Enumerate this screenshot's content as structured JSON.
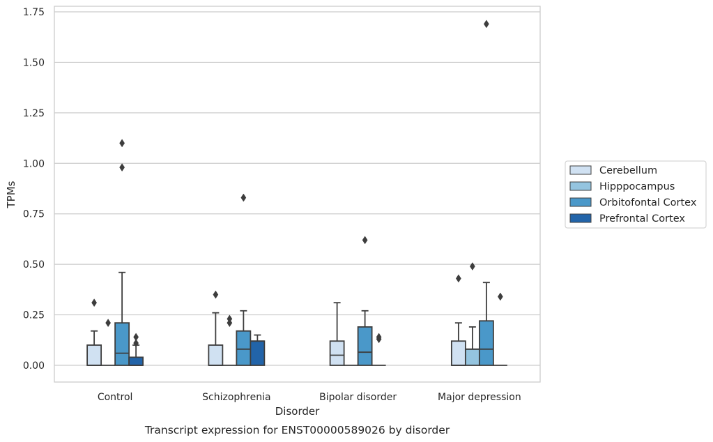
{
  "caption": "Transcript expression for ENST00000589026 by disorder",
  "chart_data": {
    "type": "box",
    "xlabel": "Disorder",
    "ylabel": "TPMs",
    "categories": [
      "Control",
      "Schizophrenia",
      "Bipolar disorder",
      "Major depression"
    ],
    "ylim": [
      -0.08,
      1.77
    ],
    "yticks": [
      "0.00",
      "0.25",
      "0.50",
      "0.75",
      "1.00",
      "1.25",
      "1.50",
      "1.75"
    ],
    "grid": "horizontal",
    "legend": {
      "placement": "right",
      "entries": [
        "Cerebellum",
        "Hipppocampus",
        "Orbitofontal Cortex",
        "Prefrontal Cortex"
      ]
    },
    "colors": [
      "#d0e1f2",
      "#94c4df",
      "#4a98c9",
      "#2264a9"
    ],
    "edge_color": "#3d3d3d",
    "series": [
      {
        "name": "Cerebellum",
        "boxes": [
          {
            "q1": 0,
            "median": 0,
            "q3": 0.1,
            "whislo": 0,
            "whishi": 0.17,
            "fliers": [
              0.31
            ]
          },
          {
            "q1": 0,
            "median": 0,
            "q3": 0.1,
            "whislo": 0,
            "whishi": 0.26,
            "fliers": [
              0.35
            ]
          },
          {
            "q1": 0,
            "median": 0.05,
            "q3": 0.12,
            "whislo": 0,
            "whishi": 0.31,
            "fliers": []
          },
          {
            "q1": 0,
            "median": 0,
            "q3": 0.12,
            "whislo": 0,
            "whishi": 0.21,
            "fliers": [
              0.43
            ]
          }
        ]
      },
      {
        "name": "Hipppocampus",
        "boxes": [
          {
            "q1": 0,
            "median": 0,
            "q3": 0,
            "whislo": 0,
            "whishi": 0,
            "fliers": [
              0.21
            ]
          },
          {
            "q1": 0,
            "median": 0,
            "q3": 0,
            "whislo": 0,
            "whishi": 0,
            "fliers": [
              0.21,
              0.23
            ]
          },
          {
            "q1": 0,
            "median": 0,
            "q3": 0,
            "whislo": 0,
            "whishi": 0,
            "fliers": []
          },
          {
            "q1": 0,
            "median": 0.08,
            "q3": 0.08,
            "whislo": 0,
            "whishi": 0.19,
            "fliers": [
              0.49
            ]
          }
        ]
      },
      {
        "name": "Orbitofontal Cortex",
        "boxes": [
          {
            "q1": 0,
            "median": 0.06,
            "q3": 0.21,
            "whislo": 0,
            "whishi": 0.46,
            "fliers": [
              0.98,
              1.1
            ]
          },
          {
            "q1": 0,
            "median": 0.08,
            "q3": 0.17,
            "whislo": 0,
            "whishi": 0.27,
            "fliers": [
              0.83
            ]
          },
          {
            "q1": 0,
            "median": 0.065,
            "q3": 0.19,
            "whislo": 0,
            "whishi": 0.27,
            "fliers": [
              0.62
            ]
          },
          {
            "q1": 0,
            "median": 0.08,
            "q3": 0.22,
            "whislo": 0,
            "whishi": 0.41,
            "fliers": [
              1.69
            ]
          }
        ]
      },
      {
        "name": "Prefrontal Cortex",
        "boxes": [
          {
            "q1": 0,
            "median": 0,
            "q3": 0.04,
            "whislo": 0,
            "whishi": 0.1,
            "fliers": [
              0.11,
              0.14
            ]
          },
          {
            "q1": 0,
            "median": 0.12,
            "q3": 0.12,
            "whislo": 0,
            "whishi": 0.15,
            "fliers": []
          },
          {
            "q1": 0,
            "median": 0,
            "q3": 0,
            "whislo": 0,
            "whishi": 0,
            "fliers": [
              0.13,
              0.14
            ]
          },
          {
            "q1": 0,
            "median": 0,
            "q3": 0,
            "whislo": 0,
            "whishi": 0,
            "fliers": [
              0.34
            ]
          }
        ]
      }
    ]
  }
}
